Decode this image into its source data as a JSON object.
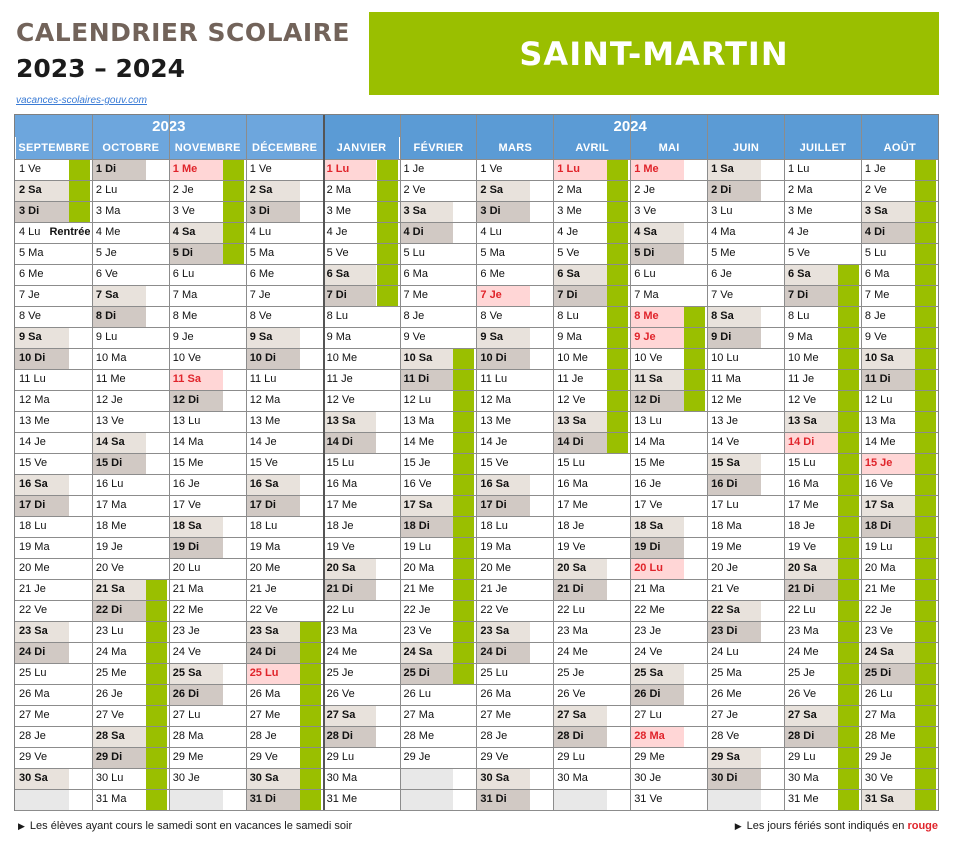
{
  "header": {
    "title_line1": "CALENDRIER SCOLAIRE",
    "title_line2": "2023 – 2024",
    "source_link": "vacances-scolaires-gouv.com",
    "region": "SAINT-MARTIN"
  },
  "colors": {
    "vacation": "#9abf00",
    "header_blue": "#5b9bd5",
    "weekend": "#e8e2dc",
    "holiday_text": "#e0242b",
    "holiday_bg": "#ffd6d6"
  },
  "years": [
    {
      "label": "2023",
      "months": 4
    },
    {
      "label": "2024",
      "months": 8
    }
  ],
  "months": [
    {
      "name": "SEPTEMBRE",
      "year": 2023,
      "m": 9
    },
    {
      "name": "OCTOBRE",
      "year": 2023,
      "m": 10
    },
    {
      "name": "NOVEMBRE",
      "year": 2023,
      "m": 11
    },
    {
      "name": "DÉCEMBRE",
      "year": 2023,
      "m": 12
    },
    {
      "name": "JANVIER",
      "year": 2024,
      "m": 1
    },
    {
      "name": "FÉVRIER",
      "year": 2024,
      "m": 2
    },
    {
      "name": "MARS",
      "year": 2024,
      "m": 3
    },
    {
      "name": "AVRIL",
      "year": 2024,
      "m": 4
    },
    {
      "name": "MAI",
      "year": 2024,
      "m": 5
    },
    {
      "name": "JUIN",
      "year": 2024,
      "m": 6
    },
    {
      "name": "JUILLET",
      "year": 2024,
      "m": 7
    },
    {
      "name": "AOÛT",
      "year": 2024,
      "m": 8
    }
  ],
  "weekday_abbr": [
    "Di",
    "Lu",
    "Ma",
    "Me",
    "Je",
    "Ve",
    "Sa"
  ],
  "holidays": [
    {
      "month": 11,
      "day": 1
    },
    {
      "month": 11,
      "day": 11
    },
    {
      "month": 12,
      "day": 25
    },
    {
      "month": 1,
      "day": 1
    },
    {
      "month": 3,
      "day": 7
    },
    {
      "month": 4,
      "day": 1
    },
    {
      "month": 5,
      "day": 1
    },
    {
      "month": 5,
      "day": 8
    },
    {
      "month": 5,
      "day": 9
    },
    {
      "month": 5,
      "day": 20
    },
    {
      "month": 5,
      "day": 28
    },
    {
      "month": 7,
      "day": 14
    },
    {
      "month": 8,
      "day": 15
    }
  ],
  "vacations": [
    {
      "month": 9,
      "from": 1,
      "to": 3
    },
    {
      "month": 10,
      "from": 21,
      "to": 31
    },
    {
      "month": 11,
      "from": 1,
      "to": 5
    },
    {
      "month": 12,
      "from": 23,
      "to": 31
    },
    {
      "month": 1,
      "from": 1,
      "to": 7
    },
    {
      "month": 2,
      "from": 10,
      "to": 25
    },
    {
      "month": 4,
      "from": 1,
      "to": 14
    },
    {
      "month": 5,
      "from": 8,
      "to": 12
    },
    {
      "month": 7,
      "from": 6,
      "to": 31
    },
    {
      "month": 8,
      "from": 1,
      "to": 31
    }
  ],
  "rentree_label": "Rentrée",
  "footer": {
    "left_note": "Les élèves ayant cours le samedi sont en vacances le samedi soir",
    "right_note": "Les jours fériés sont indiqués en",
    "right_note_red": "rouge"
  }
}
